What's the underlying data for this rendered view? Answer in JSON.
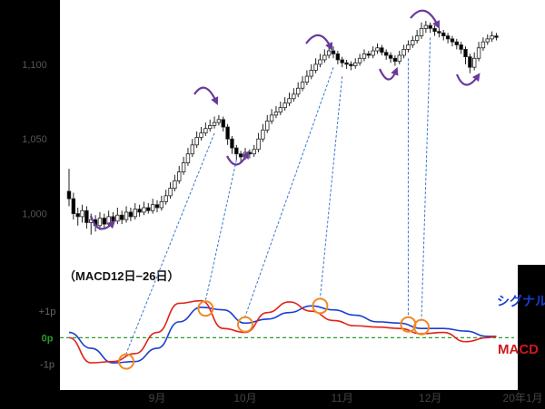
{
  "colors": {
    "frame_bg": "#000000",
    "plot_bg": "#ffffff",
    "candle_up_fill": "#ffffff",
    "candle_down_fill": "#000000",
    "candle_stroke": "#222222",
    "macd_line": "#e32119",
    "signal_line": "#1a3fd0",
    "zero_line": "#2b9a2b",
    "cross_marker": "#f08a24",
    "trend_arrow": "#6a3a9b",
    "connector": "#3a78d0",
    "signal_label": "#1a3fd0",
    "macd_label": "#d0181b"
  },
  "chart_data": [
    {
      "type": "candlestick",
      "title": "",
      "yticks": [
        "1,100",
        "1,050",
        "1,000"
      ],
      "ylim": [
        970,
        1140
      ],
      "tick_values": [
        1100,
        1050,
        1000
      ],
      "candles": [
        [
          1015,
          1010,
          1030,
          1005
        ],
        [
          1010,
          1000,
          1014,
          996
        ],
        [
          1000,
          998,
          1004,
          992
        ],
        [
          998,
          1002,
          1006,
          994
        ],
        [
          1002,
          994,
          1005,
          990
        ],
        [
          994,
          996,
          1000,
          986
        ],
        [
          996,
          992,
          999,
          988
        ],
        [
          992,
          997,
          1001,
          989
        ],
        [
          997,
          993,
          1000,
          990
        ],
        [
          993,
          998,
          1002,
          991
        ],
        [
          998,
          995,
          1001,
          992
        ],
        [
          995,
          999,
          1004,
          993
        ],
        [
          999,
          996,
          1002,
          993
        ],
        [
          996,
          1001,
          1005,
          994
        ],
        [
          1001,
          998,
          1004,
          995
        ],
        [
          998,
          1003,
          1007,
          996
        ],
        [
          1003,
          1001,
          1006,
          998
        ],
        [
          1001,
          1004,
          1008,
          999
        ],
        [
          1004,
          1002,
          1007,
          1000
        ],
        [
          1002,
          1006,
          1010,
          1000
        ],
        [
          1006,
          1004,
          1009,
          1001
        ],
        [
          1004,
          1008,
          1012,
          1002
        ],
        [
          1008,
          1012,
          1016,
          1006
        ],
        [
          1012,
          1017,
          1021,
          1010
        ],
        [
          1017,
          1022,
          1026,
          1015
        ],
        [
          1022,
          1028,
          1032,
          1020
        ],
        [
          1028,
          1034,
          1038,
          1026
        ],
        [
          1034,
          1040,
          1044,
          1032
        ],
        [
          1040,
          1046,
          1050,
          1038
        ],
        [
          1046,
          1051,
          1055,
          1044
        ],
        [
          1051,
          1054,
          1058,
          1049
        ],
        [
          1054,
          1057,
          1061,
          1052
        ],
        [
          1057,
          1059,
          1063,
          1055
        ],
        [
          1059,
          1061,
          1065,
          1057
        ],
        [
          1061,
          1063,
          1066,
          1059
        ],
        [
          1063,
          1058,
          1065,
          1055
        ],
        [
          1058,
          1050,
          1060,
          1046
        ],
        [
          1050,
          1044,
          1052,
          1040
        ],
        [
          1044,
          1040,
          1046,
          1036
        ],
        [
          1040,
          1038,
          1042,
          1034
        ],
        [
          1038,
          1041,
          1044,
          1036
        ],
        [
          1041,
          1040,
          1043,
          1037
        ],
        [
          1040,
          1043,
          1046,
          1038
        ],
        [
          1043,
          1050,
          1054,
          1041
        ],
        [
          1050,
          1056,
          1060,
          1048
        ],
        [
          1056,
          1062,
          1066,
          1054
        ],
        [
          1062,
          1066,
          1070,
          1060
        ],
        [
          1066,
          1068,
          1072,
          1064
        ],
        [
          1068,
          1071,
          1075,
          1066
        ],
        [
          1071,
          1074,
          1078,
          1069
        ],
        [
          1074,
          1077,
          1081,
          1072
        ],
        [
          1077,
          1080,
          1084,
          1075
        ],
        [
          1080,
          1084,
          1088,
          1078
        ],
        [
          1084,
          1088,
          1092,
          1082
        ],
        [
          1088,
          1092,
          1096,
          1086
        ],
        [
          1092,
          1096,
          1100,
          1090
        ],
        [
          1096,
          1100,
          1104,
          1094
        ],
        [
          1100,
          1103,
          1107,
          1098
        ],
        [
          1103,
          1106,
          1110,
          1101
        ],
        [
          1106,
          1109,
          1113,
          1104
        ],
        [
          1109,
          1107,
          1112,
          1104
        ],
        [
          1107,
          1103,
          1109,
          1100
        ],
        [
          1103,
          1101,
          1105,
          1098
        ],
        [
          1101,
          1100,
          1103,
          1097
        ],
        [
          1100,
          1099,
          1102,
          1096
        ],
        [
          1099,
          1101,
          1104,
          1097
        ],
        [
          1101,
          1104,
          1107,
          1099
        ],
        [
          1104,
          1107,
          1110,
          1102
        ],
        [
          1107,
          1106,
          1109,
          1104
        ],
        [
          1106,
          1109,
          1112,
          1104
        ],
        [
          1109,
          1111,
          1114,
          1107
        ],
        [
          1111,
          1108,
          1113,
          1106
        ],
        [
          1108,
          1106,
          1110,
          1103
        ],
        [
          1106,
          1104,
          1108,
          1101
        ],
        [
          1104,
          1102,
          1106,
          1099
        ],
        [
          1102,
          1106,
          1109,
          1100
        ],
        [
          1106,
          1110,
          1113,
          1104
        ],
        [
          1110,
          1113,
          1116,
          1108
        ],
        [
          1113,
          1116,
          1119,
          1111
        ],
        [
          1116,
          1119,
          1123,
          1114
        ],
        [
          1119,
          1124,
          1128,
          1117
        ],
        [
          1124,
          1126,
          1129,
          1121
        ],
        [
          1126,
          1124,
          1128,
          1121
        ],
        [
          1124,
          1122,
          1126,
          1119
        ],
        [
          1122,
          1121,
          1124,
          1118
        ],
        [
          1121,
          1119,
          1123,
          1116
        ],
        [
          1119,
          1117,
          1121,
          1114
        ],
        [
          1117,
          1115,
          1119,
          1112
        ],
        [
          1115,
          1113,
          1117,
          1110
        ],
        [
          1113,
          1110,
          1115,
          1107
        ],
        [
          1110,
          1105,
          1112,
          1100
        ],
        [
          1105,
          1098,
          1107,
          1094
        ],
        [
          1098,
          1104,
          1108,
          1096
        ],
        [
          1104,
          1111,
          1115,
          1102
        ],
        [
          1111,
          1115,
          1118,
          1109
        ],
        [
          1115,
          1117,
          1120,
          1113
        ],
        [
          1117,
          1119,
          1122,
          1115
        ],
        [
          1119,
          1118,
          1121,
          1116
        ]
      ]
    },
    {
      "type": "line",
      "title": "（MACD12日−26日）",
      "yticks": [
        "+1p",
        "0p",
        "-1p"
      ],
      "tick_values": [
        1,
        0,
        -1
      ],
      "ylim": [
        -1.7,
        2.0
      ],
      "xlim": [
        0,
        97
      ],
      "xticks": [
        {
          "label": "9月",
          "x": 20
        },
        {
          "label": "10月",
          "x": 40
        },
        {
          "label": "11月",
          "x": 62
        },
        {
          "label": "12月",
          "x": 82
        },
        {
          "label": "20年1月",
          "x": 103
        }
      ],
      "series": [
        {
          "name": "シグナル",
          "x": [
            0,
            5,
            10,
            15,
            20,
            25,
            30,
            35,
            40,
            45,
            50,
            55,
            60,
            65,
            70,
            75,
            80,
            85,
            90,
            95,
            97
          ],
          "y": [
            0.2,
            -0.4,
            -0.95,
            -0.9,
            -0.4,
            0.6,
            1.15,
            1.05,
            0.55,
            0.7,
            0.95,
            1.2,
            1.05,
            0.85,
            0.6,
            0.55,
            0.35,
            0.35,
            0.25,
            0.05,
            0.05
          ]
        },
        {
          "name": "MACD",
          "x": [
            0,
            5,
            10,
            15,
            20,
            25,
            30,
            35,
            40,
            45,
            50,
            55,
            60,
            65,
            70,
            75,
            80,
            85,
            90,
            95,
            97
          ],
          "y": [
            0.0,
            -0.95,
            -0.9,
            -0.6,
            0.2,
            1.3,
            1.4,
            0.35,
            0.2,
            0.95,
            1.35,
            1.0,
            0.65,
            0.45,
            0.4,
            0.35,
            0.15,
            0.2,
            -0.15,
            0.0,
            0.05
          ]
        }
      ],
      "cross_markers": [
        {
          "x": 13,
          "y": -0.9
        },
        {
          "x": 31,
          "y": 1.1
        },
        {
          "x": 40,
          "y": 0.5
        },
        {
          "x": 57,
          "y": 1.2
        },
        {
          "x": 77,
          "y": 0.5
        },
        {
          "x": 80,
          "y": 0.4
        }
      ]
    }
  ]
}
